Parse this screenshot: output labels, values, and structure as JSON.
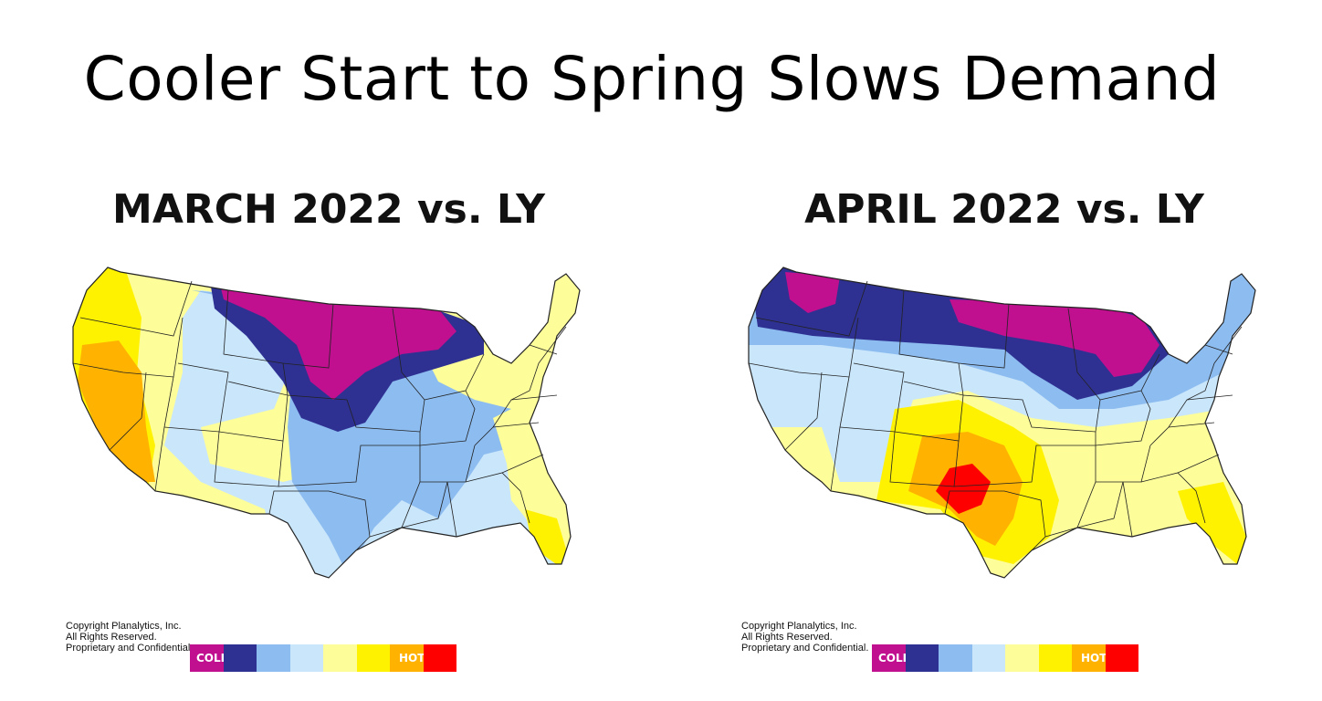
{
  "title": "Cooler Start to Spring Slows Demand",
  "maps": [
    {
      "heading": "MARCH 2022 vs. LY",
      "copyright": [
        "Copyright Planalytics, Inc.",
        "All Rights Reserved.",
        "Proprietary and Confidential."
      ]
    },
    {
      "heading": "APRIL 2022 vs. LY",
      "copyright": [
        "Copyright Planalytics, Inc.",
        "All Rights Reserved.",
        "Proprietary and Confidential."
      ]
    }
  ],
  "legend": {
    "colder_label": "COLDER",
    "hotter_label": "HOTTER",
    "colors": [
      "#c0108f",
      "#2e3192",
      "#8dbcf0",
      "#c9e6fb",
      "#fdfd9a",
      "#fff200",
      "#ffb300",
      "#ff0000"
    ]
  }
}
